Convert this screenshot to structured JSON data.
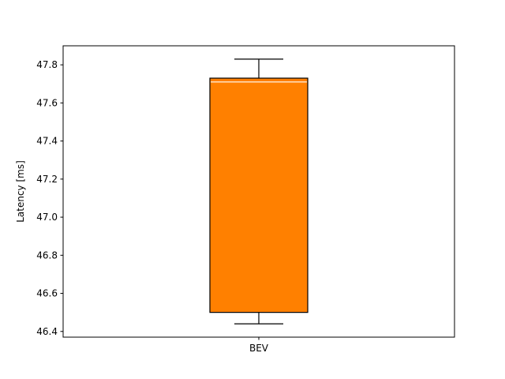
{
  "chart_data": {
    "type": "box",
    "title": "",
    "xlabel": "",
    "ylabel": "Latency [ms]",
    "ylim": [
      46.37,
      47.9
    ],
    "yticks": [
      46.4,
      46.6,
      46.8,
      47.0,
      47.2,
      47.4,
      47.6,
      47.8
    ],
    "ytick_labels": [
      "46.4",
      "46.6",
      "46.8",
      "47.0",
      "47.2",
      "47.4",
      "47.6",
      "47.8"
    ],
    "grid": false,
    "categories": [
      "BEV"
    ],
    "boxes": [
      {
        "name": "BEV",
        "whisker_low": 46.44,
        "q1": 46.5,
        "median": 47.71,
        "q3": 47.73,
        "whisker_high": 47.83,
        "fill_color": "#ff8000",
        "edge_color": "#000000",
        "median_color": "#ffffff"
      }
    ]
  }
}
